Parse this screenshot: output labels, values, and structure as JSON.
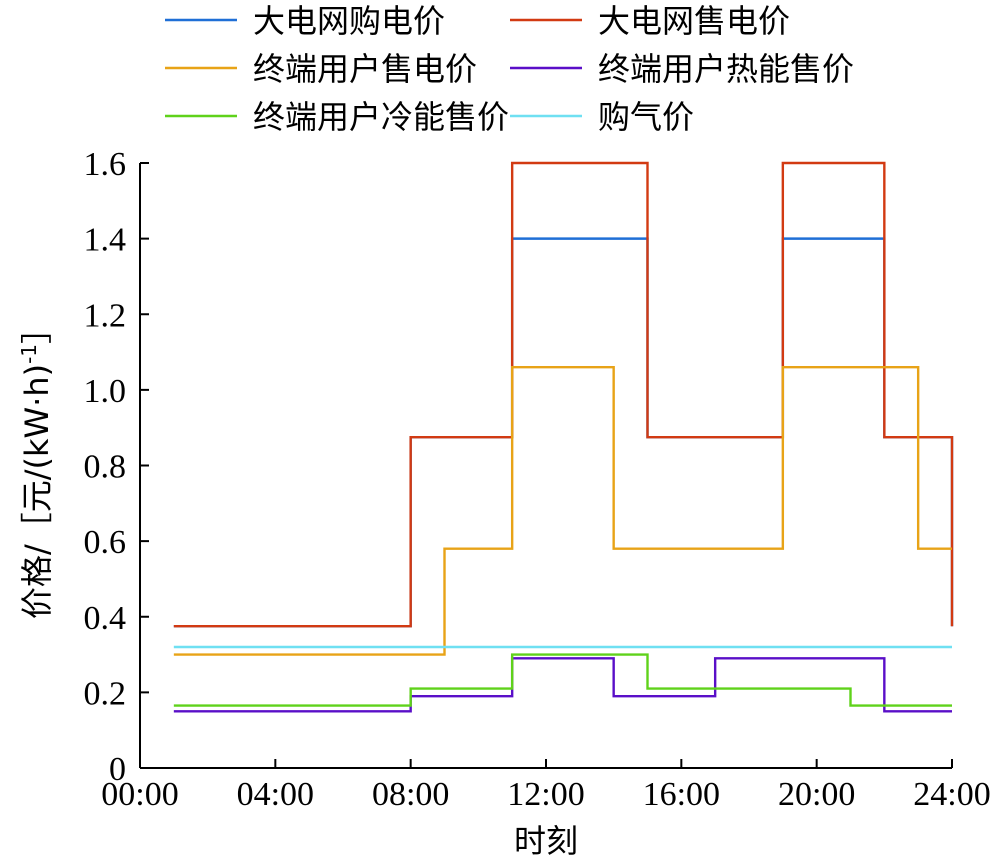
{
  "chart_data": {
    "type": "line",
    "step": true,
    "xlabel": "时刻",
    "ylabel": "价格/［元/(kW·h)",
    "ylabel_sup": "-1",
    "ylabel_close": "］",
    "x_ticks": [
      "00:00",
      "04:00",
      "08:00",
      "12:00",
      "16:00",
      "20:00",
      "24:00"
    ],
    "y_ticks": [
      "0",
      "0.2",
      "0.4",
      "0.6",
      "0.8",
      "1.0",
      "1.2",
      "1.4",
      "1.6"
    ],
    "xlim": [
      0,
      24
    ],
    "ylim": [
      0,
      1.6
    ],
    "grid": false,
    "legend_position": "top",
    "series": [
      {
        "name": "大电网购电价",
        "color": "#1f6fd6",
        "steps": [
          [
            1,
            0.375
          ],
          [
            8,
            0.875
          ],
          [
            11,
            1.4
          ],
          [
            15,
            0.875
          ],
          [
            19,
            1.4
          ],
          [
            22,
            0.875
          ],
          [
            24,
            0.375
          ]
        ]
      },
      {
        "name": "大电网售电价",
        "color": "#d23a12",
        "steps": [
          [
            1,
            0.375
          ],
          [
            8,
            0.875
          ],
          [
            11,
            1.6
          ],
          [
            15,
            0.875
          ],
          [
            19,
            1.6
          ],
          [
            22,
            0.875
          ],
          [
            24,
            0.375
          ]
        ]
      },
      {
        "name": "终端用户售电价",
        "color": "#e8a317",
        "steps": [
          [
            1,
            0.3
          ],
          [
            9,
            0.58
          ],
          [
            11,
            1.06
          ],
          [
            14,
            0.58
          ],
          [
            19,
            1.06
          ],
          [
            23,
            0.58
          ],
          [
            24,
            0.58
          ]
        ]
      },
      {
        "name": "终端用户热能售价",
        "color": "#5a0fc8",
        "steps": [
          [
            1,
            0.15
          ],
          [
            8,
            0.19
          ],
          [
            11,
            0.29
          ],
          [
            14,
            0.19
          ],
          [
            17,
            0.29
          ],
          [
            22,
            0.15
          ],
          [
            24,
            0.15
          ]
        ]
      },
      {
        "name": "终端用户冷能售价",
        "color": "#5fd21a",
        "steps": [
          [
            1,
            0.165
          ],
          [
            8,
            0.21
          ],
          [
            11,
            0.3
          ],
          [
            15,
            0.21
          ],
          [
            21,
            0.165
          ],
          [
            24,
            0.165
          ]
        ]
      },
      {
        "name": "购气价",
        "color": "#6fe0f2",
        "steps": [
          [
            1,
            0.32
          ],
          [
            24,
            0.32
          ]
        ]
      }
    ]
  }
}
